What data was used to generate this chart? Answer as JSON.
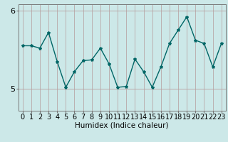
{
  "x": [
    0,
    1,
    2,
    3,
    4,
    5,
    6,
    7,
    8,
    9,
    10,
    11,
    12,
    13,
    14,
    15,
    16,
    17,
    18,
    19,
    20,
    21,
    22,
    23
  ],
  "y": [
    5.55,
    5.55,
    5.52,
    5.72,
    5.35,
    5.02,
    5.22,
    5.36,
    5.37,
    5.52,
    5.32,
    5.02,
    5.03,
    5.38,
    5.22,
    5.02,
    5.28,
    5.58,
    5.75,
    5.92,
    5.62,
    5.58,
    5.28,
    5.58
  ],
  "line_color": "#006666",
  "marker": "*",
  "marker_size": 3,
  "bg_color": "#cce8e8",
  "grid_color_v": "#b8a8a8",
  "grid_color_h": "#b8a0a0",
  "xlabel": "Humidex (Indice chaleur)",
  "ylim": [
    4.72,
    6.08
  ],
  "yticks": [
    5,
    6
  ],
  "ytick_labels": [
    "5",
    "6"
  ],
  "xticks": [
    0,
    1,
    2,
    3,
    4,
    5,
    6,
    7,
    8,
    9,
    10,
    11,
    12,
    13,
    14,
    15,
    16,
    17,
    18,
    19,
    20,
    21,
    22,
    23
  ],
  "xlabel_fontsize": 7.5,
  "tick_fontsize": 7,
  "linewidth": 1.0
}
